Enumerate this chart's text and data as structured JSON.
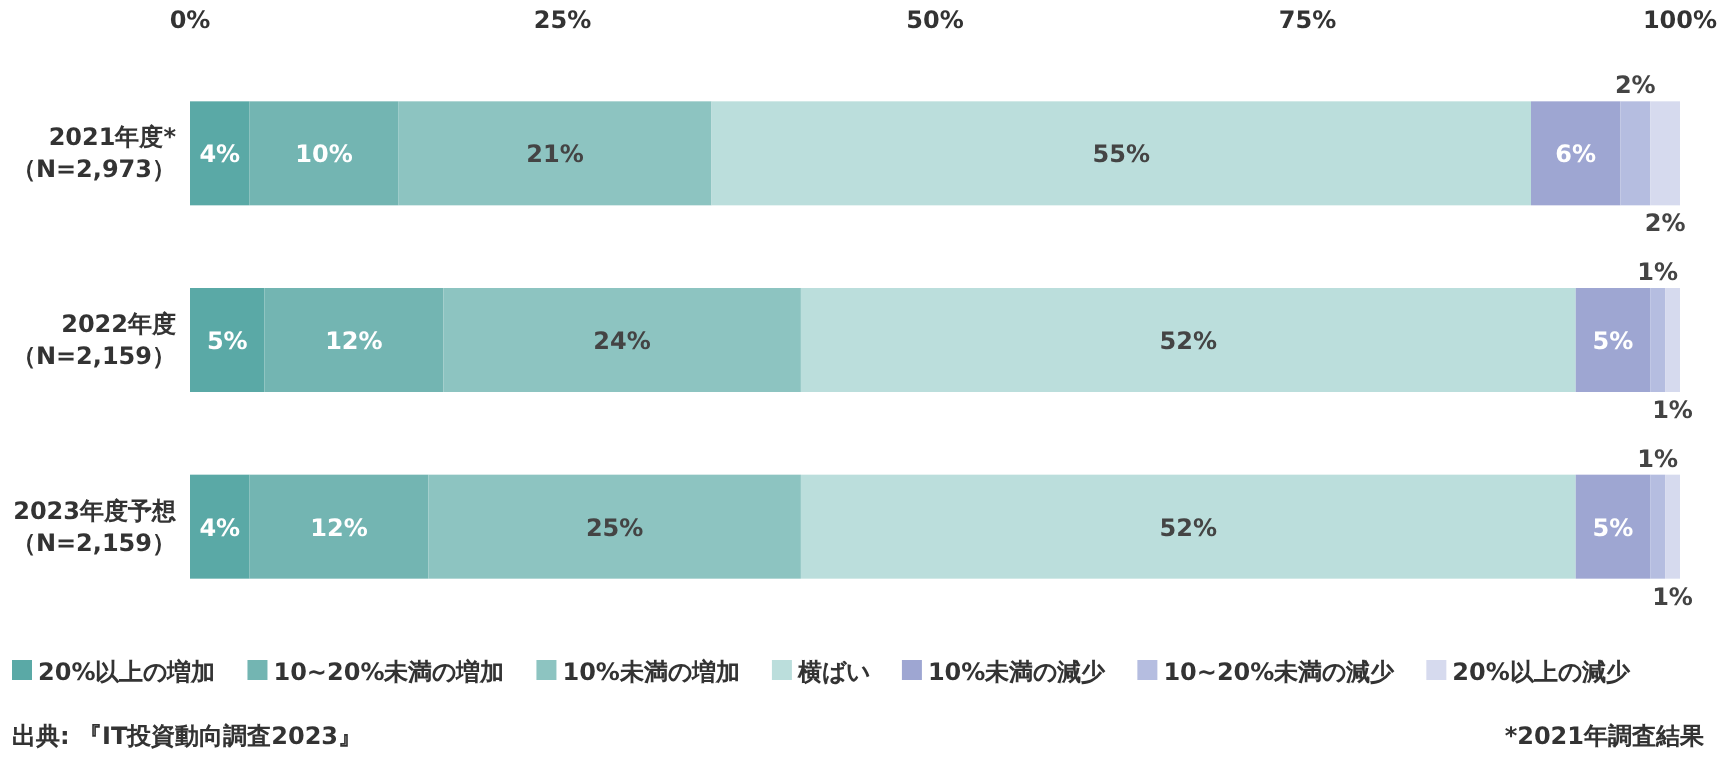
{
  "chart_data": {
    "type": "bar",
    "orientation": "horizontal",
    "stacked": true,
    "categories": [
      "2021年度*（N=2,973）",
      "2022年度（N=2,159）",
      "2023年度予想（N=2,159）"
    ],
    "series": [
      {
        "name": "20%以上の増加",
        "color": "#5aa9a6",
        "values": [
          4,
          5,
          4
        ],
        "value_labels": [
          "4%",
          "5%",
          "4%"
        ]
      },
      {
        "name": "10~20%未満の増加",
        "color": "#73b5b2",
        "values": [
          10,
          12,
          12
        ],
        "value_labels": [
          "10%",
          "12%",
          "12%"
        ]
      },
      {
        "name": "10%未満の増加",
        "color": "#8dc4c1",
        "values": [
          21,
          24,
          25
        ],
        "value_labels": [
          "21%",
          "24%",
          "25%"
        ]
      },
      {
        "name": "横ばい",
        "color": "#bbdedc",
        "values": [
          55,
          52,
          52
        ],
        "value_labels": [
          "55%",
          "52%",
          "52%"
        ]
      },
      {
        "name": "10%未満の減少",
        "color": "#9ea6d2",
        "values": [
          6,
          5,
          5
        ],
        "value_labels": [
          "6%",
          "5%",
          "5%"
        ]
      },
      {
        "name": "10~20%未満の減少",
        "color": "#b5bde0",
        "values": [
          2,
          1,
          1
        ],
        "value_labels": [
          "2%",
          "1%",
          "1%"
        ]
      },
      {
        "name": "20%以上の減少",
        "color": "#d6daee",
        "values": [
          2,
          1,
          1
        ],
        "value_labels": [
          "2%",
          "1%",
          "1%"
        ]
      }
    ],
    "xlim": [
      0,
      100
    ],
    "xticks": [
      {
        "value": 0,
        "label": "0%"
      },
      {
        "value": 25,
        "label": "25%"
      },
      {
        "value": 50,
        "label": "50%"
      },
      {
        "value": 75,
        "label": "75%"
      },
      {
        "value": 100,
        "label": "100%"
      }
    ],
    "legend": "bottom",
    "annotations": [
      "出典: 『IT投資動向調査2023』",
      "*2021年調査結果"
    ]
  }
}
